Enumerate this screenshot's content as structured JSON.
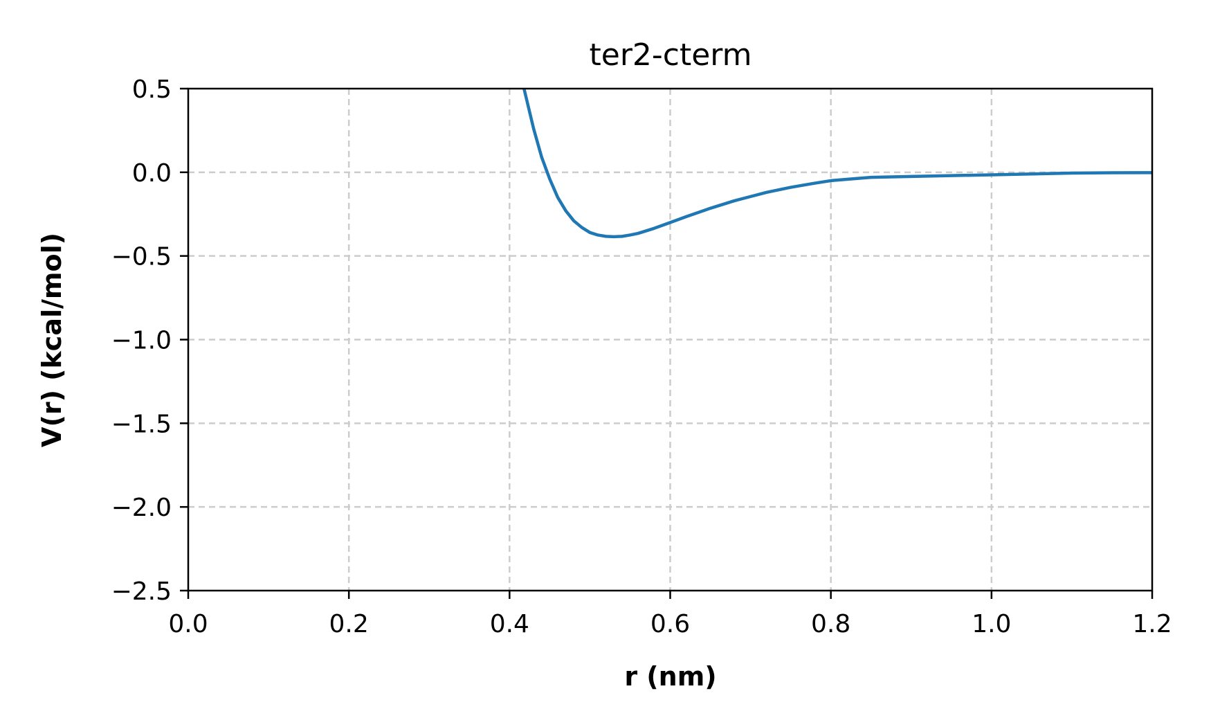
{
  "chart_data": {
    "type": "line",
    "title": "ter2-cterm",
    "xlabel": "r (nm)",
    "ylabel": "V(r) (kcal/mol)",
    "xlim": [
      0.0,
      1.2
    ],
    "ylim": [
      -2.5,
      0.5
    ],
    "xticks": [
      0.0,
      0.2,
      0.4,
      0.6,
      0.8,
      1.0,
      1.2
    ],
    "xtick_labels": [
      "0.0",
      "0.2",
      "0.4",
      "0.6",
      "0.8",
      "1.0",
      "1.2"
    ],
    "yticks": [
      0.5,
      0.0,
      -0.5,
      -1.0,
      -1.5,
      -2.0,
      -2.5
    ],
    "ytick_labels": [
      "0.5",
      "0.0",
      "−0.5",
      "−1.0",
      "−1.5",
      "−2.0",
      "−2.5"
    ],
    "grid": true,
    "grid_style": "dashed",
    "series": [
      {
        "color": "#1f77b4",
        "x": [
          0.418,
          0.425,
          0.43,
          0.44,
          0.45,
          0.46,
          0.47,
          0.48,
          0.49,
          0.5,
          0.51,
          0.52,
          0.53,
          0.54,
          0.55,
          0.56,
          0.58,
          0.6,
          0.62,
          0.65,
          0.68,
          0.7,
          0.72,
          0.75,
          0.78,
          0.8,
          0.85,
          0.9,
          0.95,
          1.0,
          1.05,
          1.1,
          1.15,
          1.2
        ],
        "y": [
          0.5,
          0.36,
          0.26,
          0.09,
          -0.04,
          -0.15,
          -0.23,
          -0.29,
          -0.33,
          -0.36,
          -0.375,
          -0.383,
          -0.385,
          -0.383,
          -0.375,
          -0.365,
          -0.335,
          -0.3,
          -0.265,
          -0.215,
          -0.17,
          -0.145,
          -0.12,
          -0.09,
          -0.065,
          -0.05,
          -0.03,
          -0.025,
          -0.02,
          -0.015,
          -0.01,
          -0.005,
          -0.003,
          -0.002
        ]
      }
    ]
  }
}
